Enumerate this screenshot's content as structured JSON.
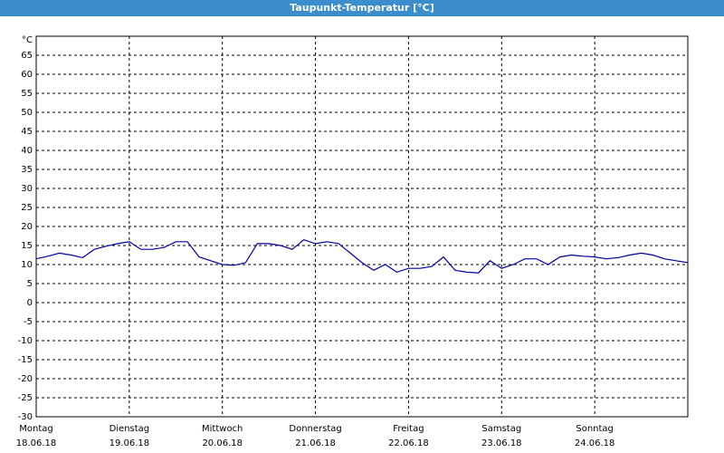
{
  "chart_data": {
    "type": "line",
    "title": "Taupunkt-Temperatur [°C]",
    "x": [
      0,
      0.125,
      0.25,
      0.375,
      0.5,
      0.625,
      0.75,
      0.875,
      1,
      1.125,
      1.25,
      1.375,
      1.5,
      1.625,
      1.75,
      1.875,
      2,
      2.125,
      2.25,
      2.375,
      2.5,
      2.625,
      2.75,
      2.875,
      3,
      3.125,
      3.25,
      3.375,
      3.5,
      3.625,
      3.75,
      3.875,
      4,
      4.125,
      4.25,
      4.375,
      4.5,
      4.625,
      4.75,
      4.875,
      5,
      5.125,
      5.25,
      5.375,
      5.5,
      5.625,
      5.75,
      5.875,
      6,
      6.125,
      6.25,
      6.375,
      6.5,
      6.625,
      6.75,
      6.875,
      7
    ],
    "series": [
      {
        "color": "#0000a0",
        "values": [
          11.5,
          12.2,
          13,
          12.5,
          11.8,
          14,
          14.8,
          15.5,
          16,
          14,
          14,
          14.5,
          16,
          16,
          12,
          11,
          10,
          9.8,
          10.5,
          15.5,
          15.5,
          15,
          14,
          16.5,
          15.5,
          16,
          15.5,
          13,
          10.5,
          8.5,
          10,
          8,
          9,
          9,
          9.5,
          12,
          8.5,
          8,
          7.8,
          11,
          9,
          10,
          11.5,
          11.5,
          10,
          12,
          12.5,
          12.2,
          12,
          11.5,
          11.8,
          12.5,
          13,
          12.5,
          11.5,
          11,
          10.5
        ]
      }
    ],
    "xlim": [
      0,
      7
    ],
    "xticks": [
      {
        "value": 0,
        "label": "Montag"
      },
      {
        "value": 1,
        "label": "Dienstag"
      },
      {
        "value": 2,
        "label": "Mittwoch"
      },
      {
        "value": 3,
        "label": "Donnerstag"
      },
      {
        "value": 4,
        "label": "Freitag"
      },
      {
        "value": 5,
        "label": "Samstag"
      },
      {
        "value": 6,
        "label": "Sonntag"
      }
    ],
    "xtick_dates": [
      "18.06.18",
      "19.06.18",
      "20.06.18",
      "21.06.18",
      "22.06.18",
      "23.06.18",
      "24.06.18"
    ],
    "ylim": [
      -30,
      70
    ],
    "yticks": [
      -30,
      -25,
      -20,
      -15,
      -10,
      -5,
      0,
      5,
      10,
      15,
      20,
      25,
      30,
      35,
      40,
      45,
      50,
      55,
      60,
      65,
      {
        "value": 70,
        "label": "°C"
      }
    ],
    "grid": true
  }
}
